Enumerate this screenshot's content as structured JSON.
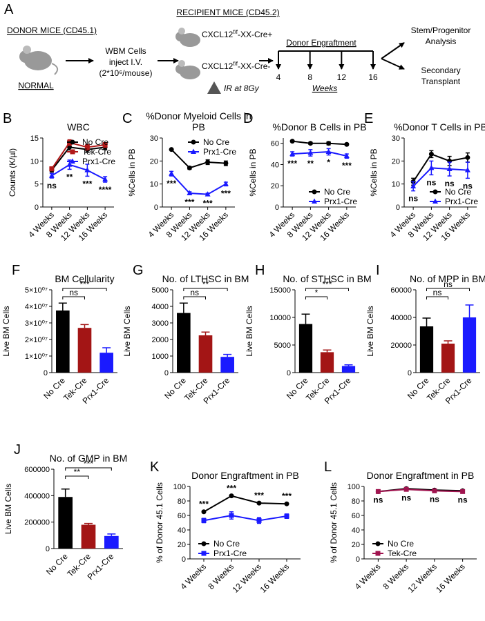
{
  "schematic": {
    "panel": "A",
    "donor_title": "DONOR MICE (CD45.1)",
    "donor_label": "NORMAL",
    "injection_lines": [
      "WBM Cells",
      "inject I.V.",
      "(2*10⁶/mouse)"
    ],
    "recipient_title": "RECIPIENT  MICE (CD45.2)",
    "genotypes": [
      {
        "gene": "CXCL12",
        "allele": "f/f",
        "suffix": "-XX-Cre+"
      },
      {
        "gene": "CXCL12",
        "allele": "f/f",
        "suffix": "-XX-Cre-"
      }
    ],
    "irradiation": "IR at 8Gy",
    "engraftment_title": "Donor Engraftment",
    "timepoints": [
      4,
      8,
      12,
      16
    ],
    "timeline_unit": "Weeks",
    "outcomes": [
      [
        "Stem/Progenitor",
        "Analysis"
      ],
      [
        "Secondary",
        "Transplant"
      ]
    ]
  },
  "chart_data": [
    {
      "type": "line",
      "panel": "B",
      "title": "WBC",
      "y_label": "Counts (K/µl)",
      "categories": [
        "4 Weeks",
        "8 Weeks",
        "12 Weeks",
        "16 Weeks"
      ],
      "ylim": [
        0,
        15
      ],
      "yticks": [
        0,
        5,
        10,
        15
      ],
      "series": [
        {
          "name": "No Cre",
          "color": "#000000",
          "marker": "circle",
          "values": [
            8,
            13,
            12.5,
            13
          ],
          "errors": [
            0.4,
            0.6,
            0.6,
            0.5
          ]
        },
        {
          "name": "Tek-Cre",
          "color": "#b01818",
          "marker": "square",
          "values": [
            8.3,
            14,
            13,
            13.5
          ],
          "errors": [
            0.4,
            0.6,
            0.6,
            0.5
          ]
        },
        {
          "name": "Prx1-Cre",
          "color": "#1a1aff",
          "marker": "triangle",
          "values": [
            6.8,
            9.2,
            8,
            6
          ],
          "errors": [
            0.5,
            1,
            1.3,
            0.6
          ]
        }
      ],
      "annotations": [
        "ns",
        "**",
        "***",
        "****"
      ],
      "annotation_position": "below",
      "legend": "upper-right"
    },
    {
      "type": "line",
      "panel": "C",
      "title": "%Donor Myeloid Cells in PB",
      "y_label": "%Cells in PB",
      "categories": [
        "4 Weeks",
        "8 Weeks",
        "12 Weeks",
        "16 Weeks"
      ],
      "ylim": [
        0,
        30
      ],
      "yticks": [
        0,
        10,
        20,
        30
      ],
      "series": [
        {
          "name": "No Cre",
          "color": "#000000",
          "marker": "circle",
          "values": [
            25,
            17,
            19.5,
            19
          ],
          "errors": [
            0.3,
            0.6,
            1,
            1
          ]
        },
        {
          "name": "Prx1-Cre",
          "color": "#1a1aff",
          "marker": "triangle",
          "values": [
            14.5,
            6,
            5.5,
            10
          ],
          "errors": [
            1,
            0.6,
            0.5,
            0.8
          ]
        }
      ],
      "annotations": [
        "***",
        "***",
        "***",
        "***"
      ],
      "annotation_position": "below",
      "legend": "upper-right"
    },
    {
      "type": "line",
      "panel": "D",
      "title": "%Donor B Cells in PB",
      "y_label": "%Cells in PB",
      "categories": [
        "4 Weeks",
        "8 Weeks",
        "12 Weeks",
        "16 Weeks"
      ],
      "ylim": [
        0,
        65
      ],
      "yticks": [
        0,
        20,
        40,
        60
      ],
      "series": [
        {
          "name": "No Cre",
          "color": "#000000",
          "marker": "circle",
          "values": [
            62,
            60,
            60,
            59
          ],
          "errors": [
            0.5,
            1,
            1.5,
            1
          ]
        },
        {
          "name": "Prx1-Cre",
          "color": "#1a1aff",
          "marker": "triangle",
          "values": [
            50,
            51,
            52,
            48
          ],
          "errors": [
            2,
            3,
            3,
            2
          ]
        }
      ],
      "annotations": [
        "***",
        "**",
        "*",
        "***"
      ],
      "annotation_position": "below",
      "legend": "lower-right"
    },
    {
      "type": "line",
      "panel": "E",
      "title": "%Donor T Cells in PB",
      "y_label": "%Cells in PB",
      "categories": [
        "4 Weeks",
        "8 Weeks",
        "12 Weeks",
        "16 Weeks"
      ],
      "ylim": [
        0,
        30
      ],
      "yticks": [
        0,
        10,
        20,
        30
      ],
      "series": [
        {
          "name": "No Cre",
          "color": "#000000",
          "marker": "circle",
          "values": [
            11,
            23,
            20,
            21.5
          ],
          "errors": [
            1.5,
            1.5,
            2,
            2
          ]
        },
        {
          "name": "Prx1-Cre",
          "color": "#1a1aff",
          "marker": "triangle",
          "values": [
            9,
            17,
            16.5,
            16
          ],
          "errors": [
            2,
            3,
            3,
            3.5
          ]
        }
      ],
      "annotations": [
        "ns",
        "ns",
        "ns",
        "ns"
      ],
      "annotation_position": "below",
      "legend": "lower-right"
    },
    {
      "type": "bar",
      "panel": "F",
      "title": "BM Cellularity",
      "y_label": "Live BM Cells",
      "categories": [
        "No Cre",
        "Tek-Cre",
        "Prx1-Cre"
      ],
      "values": [
        37500000,
        27000000,
        12000000
      ],
      "errors": [
        4500000,
        2000000,
        3000000
      ],
      "colors": [
        "#000000",
        "#a31515",
        "#1a1aff"
      ],
      "ylim": [
        0,
        50000000
      ],
      "yticks": [
        0,
        {
          "value": 10000000,
          "label": "1×10⁰⁷"
        },
        {
          "value": 20000000,
          "label": "2×10⁰⁷"
        },
        {
          "value": 30000000,
          "label": "3×10⁰⁷"
        },
        {
          "value": 40000000,
          "label": "4×10⁰⁷"
        },
        {
          "value": 50000000,
          "label": "5×10⁰⁷"
        }
      ],
      "comparisons": [
        "ns",
        "***"
      ]
    },
    {
      "type": "bar",
      "panel": "G",
      "title": "No. of LTHSC in BM",
      "y_label": "Live BM Cells",
      "categories": [
        "No Cre",
        "Tek-Cre",
        "Prx1-Cre"
      ],
      "values": [
        3600,
        2250,
        950
      ],
      "errors": [
        600,
        200,
        150
      ],
      "colors": [
        "#000000",
        "#a31515",
        "#1a1aff"
      ],
      "ylim": [
        0,
        5000
      ],
      "yticks": [
        0,
        1000,
        2000,
        3000,
        4000,
        5000
      ],
      "comparisons": [
        "ns",
        "**"
      ]
    },
    {
      "type": "bar",
      "panel": "H",
      "title": "No. of STHSC in BM",
      "y_label": "Live BM Cells",
      "categories": [
        "No Cre",
        "Tek-Cre",
        "Prx1-Cre"
      ],
      "values": [
        8800,
        3700,
        1200
      ],
      "errors": [
        1800,
        400,
        200
      ],
      "colors": [
        "#000000",
        "#a31515",
        "#1a1aff"
      ],
      "ylim": [
        0,
        15000
      ],
      "yticks": [
        0,
        5000,
        10000,
        15000
      ],
      "comparisons": [
        "*",
        "***"
      ]
    },
    {
      "type": "bar",
      "panel": "I",
      "title": "No. of MPP in BM",
      "y_label": "Live BM Cells",
      "categories": [
        "No Cre",
        "Tek-Cre",
        "Prx1-Cre"
      ],
      "values": [
        33500,
        21000,
        40000
      ],
      "errors": [
        6000,
        2000,
        9000
      ],
      "colors": [
        "#000000",
        "#a31515",
        "#1a1aff"
      ],
      "ylim": [
        0,
        60000
      ],
      "yticks": [
        0,
        20000,
        40000,
        60000
      ],
      "comparisons": [
        "ns",
        "ns"
      ]
    },
    {
      "type": "bar",
      "panel": "J",
      "title": "No. of GMP in BM",
      "y_label": "Live BM Cells",
      "categories": [
        "No Cre",
        "Tek-Cre",
        "Prx1-Cre"
      ],
      "values": [
        390000,
        180000,
        95000
      ],
      "errors": [
        60000,
        10000,
        15000
      ],
      "colors": [
        "#000000",
        "#a31515",
        "#1a1aff"
      ],
      "ylim": [
        0,
        600000
      ],
      "yticks": [
        0,
        200000,
        400000,
        600000
      ],
      "comparisons": [
        "**",
        "***"
      ]
    },
    {
      "type": "line",
      "panel": "K",
      "title": "Donor Engraftment in PB",
      "y_label": "% of Donor 45.1 Cells",
      "categories": [
        "4 Weeks",
        "8 Weeks",
        "12 Weeks",
        "16 Weeks"
      ],
      "ylim": [
        0,
        100
      ],
      "yticks": [
        0,
        20,
        40,
        60,
        80,
        100
      ],
      "series": [
        {
          "name": "No Cre",
          "color": "#000000",
          "marker": "circle",
          "values": [
            65,
            87,
            77,
            76
          ],
          "errors": [
            1,
            1,
            1,
            1
          ]
        },
        {
          "name": "Prx1-Cre",
          "color": "#1a1aff",
          "marker": "square",
          "values": [
            53,
            60,
            53,
            59
          ],
          "errors": [
            3,
            5,
            4,
            3
          ]
        }
      ],
      "annotations": [
        "***",
        "***",
        "***",
        "***"
      ],
      "annotation_position": "above",
      "legend": "lower-left"
    },
    {
      "type": "line",
      "panel": "L",
      "title": "Donor Engraftment in PB",
      "y_label": "% of Donor 45.1 Cells",
      "categories": [
        "4 Weeks",
        "8 Weeks",
        "12 Weeks",
        "16 Weeks"
      ],
      "ylim": [
        0,
        100
      ],
      "yticks": [
        0,
        20,
        40,
        60,
        80,
        100
      ],
      "series": [
        {
          "name": "No Cre",
          "color": "#000000",
          "marker": "circle",
          "values": [
            93,
            97,
            95,
            94
          ],
          "errors": [
            1,
            1,
            1,
            1
          ]
        },
        {
          "name": "Tek-Cre",
          "color": "#a0144f",
          "marker": "square",
          "values": [
            93,
            96,
            94,
            93
          ],
          "errors": [
            1,
            1,
            1,
            1
          ]
        }
      ],
      "annotations": [
        "ns",
        "ns",
        "ns",
        "ns"
      ],
      "annotation_position": "below",
      "legend": "lower-left"
    }
  ]
}
